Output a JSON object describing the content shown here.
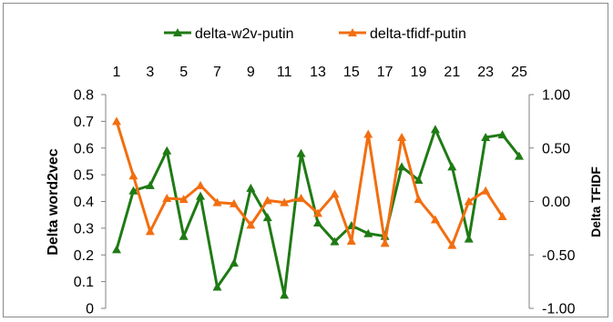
{
  "chart_data": {
    "type": "line",
    "x": [
      1,
      2,
      3,
      4,
      5,
      6,
      7,
      8,
      9,
      10,
      11,
      12,
      13,
      14,
      15,
      16,
      17,
      18,
      19,
      20,
      21,
      22,
      23,
      24,
      25
    ],
    "x_tick_labels": [
      "1",
      "3",
      "5",
      "7",
      "9",
      "11",
      "13",
      "15",
      "17",
      "19",
      "21",
      "23",
      "25"
    ],
    "ylabel": "Delta word2vec",
    "ylabel_right": "Delta TFIDF",
    "ylim": [
      0,
      0.8
    ],
    "ylim_right": [
      -1.0,
      1.0
    ],
    "y_tick_labels": [
      "0",
      "0.1",
      "0.2",
      "0.3",
      "0.4",
      "0.5",
      "0.6",
      "0.7",
      "0.8"
    ],
    "y_right_tick_labels": [
      "-1.00",
      "-0.50",
      "0.00",
      "0.50",
      "1.00"
    ],
    "legend_position": "top",
    "grid": false,
    "series": [
      {
        "name": "delta-w2v-putin",
        "axis": "left",
        "color": "#1f7a14",
        "marker": "triangle",
        "values": [
          0.22,
          0.44,
          0.46,
          0.59,
          0.27,
          0.42,
          0.08,
          0.17,
          0.45,
          0.34,
          0.05,
          0.58,
          0.32,
          0.25,
          0.31,
          0.28,
          0.27,
          0.53,
          0.48,
          0.67,
          0.53,
          0.26,
          0.64,
          0.65,
          0.57
        ]
      },
      {
        "name": "delta-tfidf-putin",
        "axis": "right",
        "color": "#f26e10",
        "marker": "triangle",
        "values": [
          0.75,
          0.24,
          -0.28,
          0.03,
          0.02,
          0.15,
          -0.01,
          -0.02,
          -0.22,
          0.01,
          -0.01,
          0.03,
          -0.11,
          0.07,
          -0.37,
          0.63,
          -0.39,
          0.6,
          0.02,
          -0.17,
          -0.41,
          0.0,
          0.1,
          -0.14,
          null
        ]
      }
    ]
  }
}
